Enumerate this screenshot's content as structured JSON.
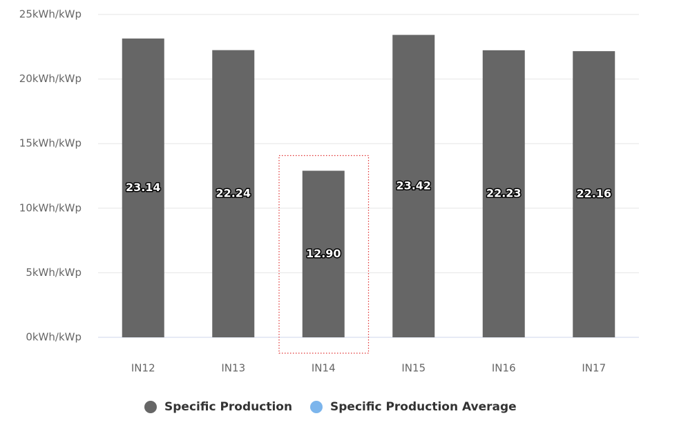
{
  "chart_data": {
    "type": "bar",
    "categories": [
      "IN12",
      "IN13",
      "IN14",
      "IN15",
      "IN16",
      "IN17"
    ],
    "series": [
      {
        "name": "Specific Production",
        "color": "#666666",
        "values": [
          23.14,
          22.24,
          12.9,
          23.42,
          22.23,
          22.16
        ],
        "value_labels": [
          "23.14",
          "22.24",
          "12.90",
          "23.42",
          "22.23",
          "22.16"
        ]
      },
      {
        "name": "Specific Production Average",
        "color": "#7cb5ec",
        "values": [
          null,
          null,
          null,
          null,
          null,
          null
        ]
      }
    ],
    "ylim": [
      0,
      25
    ],
    "yticks": [
      {
        "value": 0,
        "label": "0kWh/kWp"
      },
      {
        "value": 5,
        "label": "5kWh/kWp"
      },
      {
        "value": 10,
        "label": "10kWh/kWp"
      },
      {
        "value": 15,
        "label": "15kWh/kWp"
      },
      {
        "value": 20,
        "label": "20kWh/kWp"
      },
      {
        "value": 25,
        "label": "25kWh/kWp"
      }
    ],
    "grid": true,
    "highlight": 2
  }
}
